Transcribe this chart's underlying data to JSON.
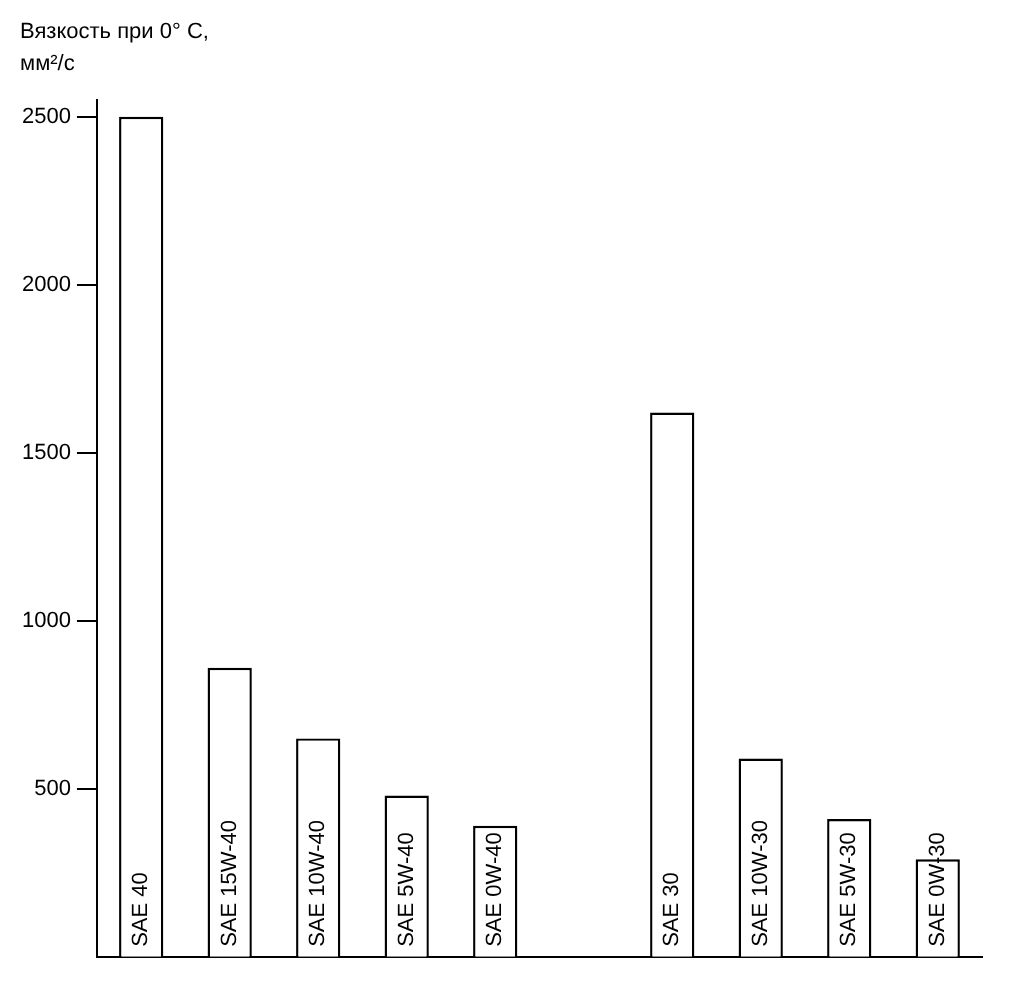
{
  "chart_data": {
    "type": "bar",
    "ylabel": "Вязкость при 0° С,\nмм²/с",
    "categories": [
      "SAE 40",
      "SAE 15W-40",
      "SAE 10W-40",
      "SAE 5W-40",
      "SAE 0W-40",
      null,
      "SAE 30",
      "SAE 10W-30",
      "SAE 5W-30",
      "SAE 0W-30"
    ],
    "values": [
      2500,
      860,
      650,
      480,
      390,
      null,
      1620,
      590,
      410,
      290
    ],
    "color": "#ffffff",
    "ylim": [
      0,
      2550
    ],
    "yticks": [
      500,
      1000,
      1500,
      2000,
      2500
    ],
    "grid": false,
    "legend": false
  }
}
